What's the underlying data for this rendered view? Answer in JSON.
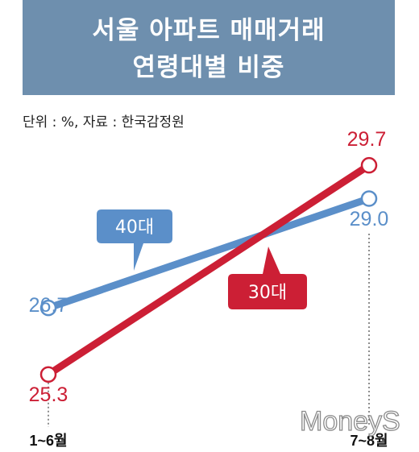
{
  "title": {
    "line1": "서울 아파트 매매거래",
    "line2": "연령대별 비중"
  },
  "source": "단위 : %, 자료 : 한국감정원",
  "watermark": "MoneyS",
  "chart_data": {
    "type": "line",
    "categories": [
      "1~6월",
      "7~8월"
    ],
    "series": [
      {
        "name": "40대",
        "values": [
          26.7,
          29.0
        ],
        "color": "#5b8fc9"
      },
      {
        "name": "30대",
        "values": [
          25.3,
          29.7
        ],
        "color": "#cc1f35"
      }
    ],
    "value_labels": {
      "40대": [
        "26.7",
        "29.0"
      ],
      "30대": [
        "25.3",
        "29.7"
      ]
    },
    "ylim": [
      24.6,
      30.5
    ],
    "grid": false,
    "legend": "callout bubbles"
  }
}
